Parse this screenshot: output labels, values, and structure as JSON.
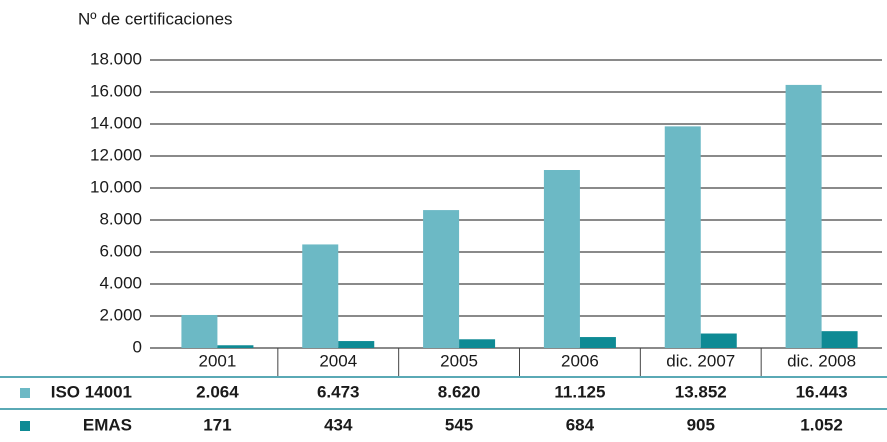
{
  "chart_data": {
    "type": "bar",
    "y_label": "Nº de certificaciones",
    "categories": [
      "2001",
      "2004",
      "2005",
      "2006",
      "dic. 2007",
      "dic. 2008"
    ],
    "series": [
      {
        "name": "ISO 14001",
        "color": "#6cb9c5",
        "values": [
          2064,
          6473,
          8620,
          11125,
          13852,
          16443
        ],
        "value_labels": [
          "2.064",
          "6.473",
          "8.620",
          "11.125",
          "13.852",
          "16.443"
        ]
      },
      {
        "name": "EMAS",
        "color": "#0e8a94",
        "values": [
          171,
          434,
          545,
          684,
          905,
          1052
        ],
        "value_labels": [
          "171",
          "434",
          "545",
          "684",
          "905",
          "1.052"
        ]
      }
    ],
    "ylim": [
      0,
      18000
    ],
    "yticks": [
      0,
      {
        "value": 2000,
        "label": "2.000"
      },
      {
        "value": 4000,
        "label": "4.000"
      },
      {
        "value": 6000,
        "label": "6.000"
      },
      {
        "value": 8000,
        "label": "8.000"
      },
      {
        "value": 10000,
        "label": "10.000"
      },
      {
        "value": 12000,
        "label": "12.000"
      },
      {
        "value": 14000,
        "label": "14.000"
      },
      {
        "value": 16000,
        "label": "16.000"
      },
      {
        "value": 18000,
        "label": "18.000"
      }
    ],
    "grid": true
  }
}
